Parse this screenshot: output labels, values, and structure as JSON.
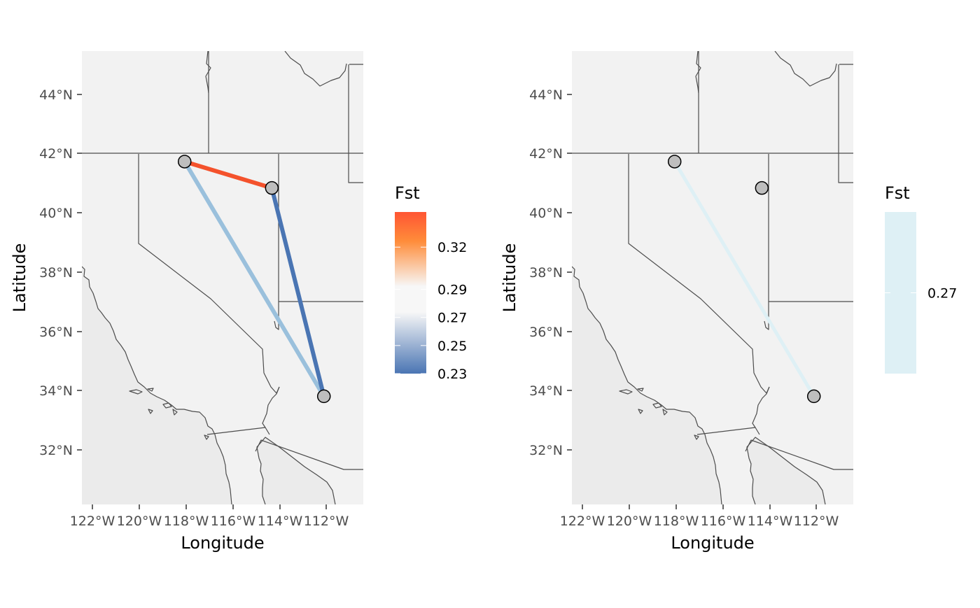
{
  "panels": [
    {
      "legend_title": "Fst",
      "xlabel": "Longitude",
      "ylabel": "Latitude",
      "x_ticks": [
        "122°W",
        "120°W",
        "118°W",
        "116°W",
        "114°W",
        "112°W"
      ],
      "y_ticks": [
        "32°N",
        "34°N",
        "36°N",
        "38°N",
        "40°N",
        "42°N",
        "44°N"
      ],
      "legend_labels": [
        "0.32",
        "0.29",
        "0.27",
        "0.25",
        "0.23"
      ]
    },
    {
      "legend_title": "Fst",
      "xlabel": "Longitude",
      "ylabel": "Latitude",
      "x_ticks": [
        "122°W",
        "120°W",
        "118°W",
        "116°W",
        "114°W",
        "112°W"
      ],
      "y_ticks": [
        "32°N",
        "34°N",
        "36°N",
        "38°N",
        "40°N",
        "42°N",
        "44°N"
      ],
      "legend_labels": [
        "0.27"
      ]
    }
  ],
  "chart_data": {
    "type": "map",
    "xlim": [
      -122.5,
      -112.5
    ],
    "ylim": [
      30.2,
      45.5
    ],
    "sites": [
      {
        "lon": -118.85,
        "lat": 41.77
      },
      {
        "lon": -115.75,
        "lat": 40.88
      },
      {
        "lon": -113.9,
        "lat": 33.85
      }
    ],
    "panels": [
      {
        "legend_range": [
          0.23,
          0.345
        ],
        "legend_breaks": [
          0.32,
          0.29,
          0.27,
          0.25,
          0.23
        ],
        "edges": [
          {
            "from": 0,
            "to": 1,
            "fst": 0.34,
            "color": "#f4522c"
          },
          {
            "from": 0,
            "to": 2,
            "fst": 0.27,
            "color": "#9ac0dc"
          },
          {
            "from": 1,
            "to": 2,
            "fst": 0.23,
            "color": "#4a75b3"
          }
        ]
      },
      {
        "legend_range": [
          0.26,
          0.28
        ],
        "legend_breaks": [
          0.27
        ],
        "edges": [
          {
            "from": 0,
            "to": 2,
            "fst": 0.27,
            "color": "#def0f5"
          }
        ]
      }
    ],
    "colors": {
      "land": "#f2f2f2",
      "ocean": "#ebebeb",
      "border": "#4d4d4d",
      "site_fill": "#bebebe",
      "legend_high": "#ff5533",
      "legend_orange": "#ff8c3a",
      "legend_mid": "#f7f7f7",
      "legend_low": "#4a75b3",
      "legend_single": "#def0f5"
    }
  }
}
